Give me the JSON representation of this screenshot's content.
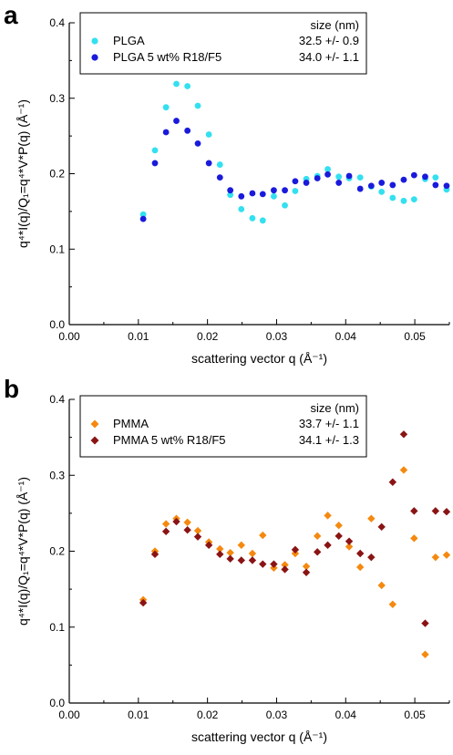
{
  "chart_data": [
    {
      "type": "scatter",
      "panel": "a",
      "xlabel": "scattering vector q (Å⁻¹)",
      "ylabel": "q⁴*I(q)/Q₁=q⁴*V*P(q) (Å⁻¹)",
      "xlim": [
        0.0,
        0.055
      ],
      "ylim": [
        0.0,
        0.4
      ],
      "xticks": [
        "0.00",
        "0.01",
        "0.02",
        "0.03",
        "0.04",
        "0.05"
      ],
      "yticks": [
        "0.0",
        "0.1",
        "0.2",
        "0.3",
        "0.4"
      ],
      "legend_header": "size (nm)",
      "legend_position": "top",
      "series": [
        {
          "name": "PLGA",
          "size": "32.5 +/- 0.9",
          "color": "#33e0f0",
          "marker": "circle",
          "x": [
            0.0107,
            0.0124,
            0.014,
            0.0155,
            0.0171,
            0.0186,
            0.0202,
            0.0218,
            0.0233,
            0.0249,
            0.0265,
            0.028,
            0.0296,
            0.0312,
            0.0327,
            0.0343,
            0.0359,
            0.0374,
            0.039,
            0.0405,
            0.0421,
            0.0437,
            0.0452,
            0.0468,
            0.0484,
            0.0499,
            0.0515,
            0.053,
            0.0546
          ],
          "y": [
            0.146,
            0.231,
            0.288,
            0.319,
            0.316,
            0.29,
            0.252,
            0.212,
            0.172,
            0.153,
            0.141,
            0.138,
            0.17,
            0.158,
            0.177,
            0.193,
            0.197,
            0.206,
            0.196,
            0.194,
            0.195,
            0.183,
            0.176,
            0.168,
            0.164,
            0.166,
            0.193,
            0.195,
            0.179
          ]
        },
        {
          "name": "PLGA 5 wt% R18/F5",
          "size": "34.0 +/- 1.1",
          "color": "#1a1adc",
          "marker": "circle",
          "x": [
            0.0107,
            0.0124,
            0.014,
            0.0155,
            0.0171,
            0.0186,
            0.0202,
            0.0218,
            0.0233,
            0.0249,
            0.0265,
            0.028,
            0.0296,
            0.0312,
            0.0327,
            0.0343,
            0.0359,
            0.0374,
            0.039,
            0.0405,
            0.0421,
            0.0437,
            0.0452,
            0.0468,
            0.0484,
            0.0499,
            0.0515,
            0.053,
            0.0546
          ],
          "y": [
            0.14,
            0.214,
            0.255,
            0.27,
            0.257,
            0.24,
            0.214,
            0.195,
            0.178,
            0.17,
            0.174,
            0.173,
            0.178,
            0.178,
            0.19,
            0.188,
            0.194,
            0.199,
            0.188,
            0.197,
            0.18,
            0.184,
            0.188,
            0.185,
            0.192,
            0.198,
            0.196,
            0.185,
            0.184
          ]
        }
      ]
    },
    {
      "type": "scatter",
      "panel": "b",
      "xlabel": "scattering vector q (Å⁻¹)",
      "ylabel": "q⁴*I(q)/Q₁=q⁴*V*P(q) (Å⁻¹)",
      "xlim": [
        0.0,
        0.055
      ],
      "ylim": [
        0.0,
        0.4
      ],
      "xticks": [
        "0.00",
        "0.01",
        "0.02",
        "0.03",
        "0.04",
        "0.05"
      ],
      "yticks": [
        "0.0",
        "0.1",
        "0.2",
        "0.3",
        "0.4"
      ],
      "legend_header": "size (nm)",
      "legend_position": "top",
      "series": [
        {
          "name": "PMMA",
          "size": "33.7 +/- 1.1",
          "color": "#f5890f",
          "marker": "diamond",
          "x": [
            0.0107,
            0.0124,
            0.014,
            0.0155,
            0.0171,
            0.0186,
            0.0202,
            0.0218,
            0.0233,
            0.0249,
            0.0265,
            0.028,
            0.0296,
            0.0312,
            0.0327,
            0.0343,
            0.0359,
            0.0374,
            0.039,
            0.0405,
            0.0421,
            0.0437,
            0.0452,
            0.0468,
            0.0484,
            0.0499,
            0.0515,
            0.053,
            0.0546
          ],
          "y": [
            0.136,
            0.2,
            0.236,
            0.243,
            0.238,
            0.227,
            0.212,
            0.203,
            0.198,
            0.208,
            0.197,
            0.221,
            0.178,
            0.182,
            0.197,
            0.18,
            0.22,
            0.247,
            0.234,
            0.206,
            0.179,
            0.243,
            0.155,
            0.13,
            0.307,
            0.217,
            0.064,
            0.192,
            0.195
          ]
        },
        {
          "name": "PMMA 5 wt% R18/F5",
          "size": "34.1 +/- 1.3",
          "color": "#8a1414",
          "marker": "diamond",
          "x": [
            0.0107,
            0.0124,
            0.014,
            0.0155,
            0.0171,
            0.0186,
            0.0202,
            0.0218,
            0.0233,
            0.0249,
            0.0265,
            0.028,
            0.0296,
            0.0312,
            0.0327,
            0.0343,
            0.0359,
            0.0374,
            0.039,
            0.0405,
            0.0421,
            0.0437,
            0.0452,
            0.0468,
            0.0484,
            0.0499,
            0.0515,
            0.053,
            0.0546
          ],
          "y": [
            0.132,
            0.196,
            0.226,
            0.239,
            0.228,
            0.219,
            0.208,
            0.196,
            0.19,
            0.188,
            0.188,
            0.183,
            0.183,
            0.176,
            0.202,
            0.172,
            0.199,
            0.208,
            0.22,
            0.213,
            0.197,
            0.192,
            0.232,
            0.291,
            0.354,
            0.253,
            0.105,
            0.253,
            0.252
          ]
        }
      ]
    }
  ]
}
